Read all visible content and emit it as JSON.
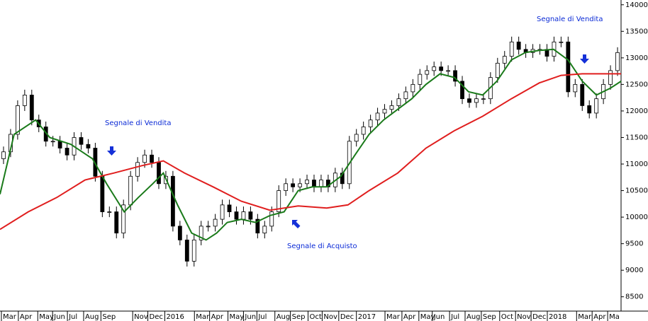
{
  "chart_data": {
    "type": "candlestick",
    "xlim": [
      0,
      176
    ],
    "ylim": [
      8230,
      14090
    ],
    "yticks": [
      8500,
      9000,
      9500,
      10000,
      10500,
      11000,
      11500,
      12000,
      12500,
      13000,
      13500,
      14000
    ],
    "xticks": [
      {
        "value": 0.4,
        "label": "Mar"
      },
      {
        "value": 5.2,
        "label": "Apr"
      },
      {
        "value": 10.7,
        "label": "May"
      },
      {
        "value": 14.9,
        "label": "Jun"
      },
      {
        "value": 19.1,
        "label": "Jul"
      },
      {
        "value": 23.7,
        "label": "Aug"
      },
      {
        "value": 28.6,
        "label": "Sep"
      },
      {
        "value": 37.6,
        "label": "Nov"
      },
      {
        "value": 41.9,
        "label": "Dec"
      },
      {
        "value": 46.7,
        "label": "2016"
      },
      {
        "value": 55.1,
        "label": "Mar"
      },
      {
        "value": 59.4,
        "label": "Apr"
      },
      {
        "value": 64.6,
        "label": "May"
      },
      {
        "value": 69,
        "label": "Jun"
      },
      {
        "value": 72.8,
        "label": "Jul"
      },
      {
        "value": 77.9,
        "label": "Aug"
      },
      {
        "value": 82.3,
        "label": "Sep"
      },
      {
        "value": 87.3,
        "label": "Oct"
      },
      {
        "value": 91.3,
        "label": "Nov"
      },
      {
        "value": 96,
        "label": "Dec"
      },
      {
        "value": 101,
        "label": "2017"
      },
      {
        "value": 109.1,
        "label": "Mar"
      },
      {
        "value": 113.9,
        "label": "Apr"
      },
      {
        "value": 118.7,
        "label": "May"
      },
      {
        "value": 122.5,
        "label": "Jun"
      },
      {
        "value": 127.4,
        "label": "Jul"
      },
      {
        "value": 131.8,
        "label": "Aug"
      },
      {
        "value": 136.4,
        "label": "Sep"
      },
      {
        "value": 141.6,
        "label": "Oct"
      },
      {
        "value": 146.1,
        "label": "Nov"
      },
      {
        "value": 150.5,
        "label": "Dec"
      },
      {
        "value": 155.1,
        "label": "2018"
      },
      {
        "value": 163.4,
        "label": "Mar"
      },
      {
        "value": 167.8,
        "label": "Apr"
      },
      {
        "value": 172.2,
        "label": "Ma"
      }
    ],
    "candles": {
      "x": [
        1,
        3,
        5,
        7,
        9,
        11,
        13,
        15,
        17,
        19,
        21,
        23,
        25,
        27,
        29,
        31,
        33,
        35,
        37,
        39,
        41,
        43,
        45,
        47,
        49,
        51,
        53,
        55,
        57,
        59,
        61,
        63,
        65,
        67,
        69,
        71,
        73,
        75,
        77,
        79,
        81,
        83,
        85,
        87,
        89,
        91,
        93,
        95,
        97,
        99,
        101,
        103,
        105,
        107,
        109,
        111,
        113,
        115,
        117,
        119,
        121,
        123,
        125,
        127,
        129,
        131,
        133,
        135,
        137,
        139,
        141,
        143,
        145,
        147,
        149,
        151,
        153,
        155,
        157,
        159,
        161,
        163,
        165,
        167,
        169,
        171,
        173,
        175
      ],
      "open": [
        11100,
        11230,
        11560,
        12100,
        12300,
        11830,
        11700,
        11430,
        11430,
        11300,
        11170,
        11500,
        11370,
        11300,
        10770,
        10100,
        10100,
        9700,
        10230,
        10770,
        11030,
        11170,
        11030,
        10630,
        10770,
        9830,
        9570,
        9170,
        9570,
        9830,
        9830,
        9960,
        10230,
        10100,
        9960,
        10100,
        9960,
        9700,
        9830,
        10100,
        10500,
        10630,
        10570,
        10630,
        10700,
        10570,
        10700,
        10570,
        10830,
        10630,
        11430,
        11560,
        11700,
        11830,
        11960,
        12030,
        12100,
        12230,
        12360,
        12500,
        12690,
        12760,
        12830,
        12760,
        12760,
        12560,
        12230,
        12160,
        12230,
        12230,
        12630,
        12900,
        13030,
        13300,
        13160,
        13100,
        13160,
        13160,
        13030,
        13300,
        13300,
        12360,
        12500,
        12100,
        11960,
        12230,
        12500,
        12760
      ],
      "high": [
        11330,
        11660,
        12200,
        12400,
        12400,
        11930,
        11800,
        11530,
        11530,
        11400,
        11600,
        11600,
        11470,
        11400,
        10870,
        10200,
        10200,
        10330,
        10870,
        11130,
        11270,
        11270,
        11130,
        10870,
        10870,
        9930,
        9670,
        9670,
        9930,
        9930,
        10060,
        10330,
        10330,
        10200,
        10200,
        10200,
        10060,
        9930,
        10200,
        10600,
        10730,
        10730,
        10730,
        10800,
        10800,
        10800,
        10800,
        10930,
        10930,
        11530,
        11660,
        11800,
        11930,
        12060,
        12130,
        12200,
        12330,
        12460,
        12600,
        12790,
        12860,
        12930,
        12930,
        12860,
        12860,
        12660,
        12330,
        12330,
        12330,
        12730,
        13000,
        13130,
        13400,
        13400,
        13260,
        13260,
        13260,
        13260,
        13400,
        13400,
        13400,
        12600,
        12600,
        12200,
        12330,
        12600,
        12860,
        13200
      ],
      "low": [
        11000,
        11130,
        11460,
        12000,
        11730,
        11600,
        11330,
        11330,
        11200,
        11070,
        11070,
        11270,
        11200,
        10670,
        10000,
        10000,
        9600,
        9600,
        10130,
        10670,
        10930,
        10930,
        10530,
        10530,
        9730,
        9470,
        9070,
        9070,
        9470,
        9730,
        9730,
        9860,
        10000,
        9860,
        9860,
        9860,
        9600,
        9600,
        9730,
        10000,
        10400,
        10470,
        10470,
        10530,
        10470,
        10470,
        10470,
        10470,
        10530,
        10530,
        11330,
        11460,
        11600,
        11730,
        11860,
        11930,
        12000,
        12130,
        12260,
        12400,
        12590,
        12660,
        12660,
        12660,
        12460,
        12130,
        12060,
        12060,
        12130,
        12130,
        12530,
        12800,
        12930,
        13060,
        13000,
        13000,
        13060,
        12930,
        12930,
        13200,
        12260,
        12260,
        12000,
        11860,
        11860,
        12130,
        12400,
        12660
      ],
      "close": [
        11230,
        11560,
        12100,
        12300,
        11830,
        11700,
        11430,
        11430,
        11300,
        11170,
        11500,
        11370,
        11300,
        10770,
        10100,
        10100,
        9700,
        10230,
        10770,
        11030,
        11170,
        11030,
        10630,
        10770,
        9830,
        9570,
        9170,
        9570,
        9830,
        9830,
        9960,
        10230,
        10100,
        9960,
        10100,
        9960,
        9700,
        9830,
        10100,
        10500,
        10630,
        10570,
        10630,
        10700,
        10570,
        10700,
        10570,
        10830,
        10630,
        11430,
        11560,
        11700,
        11830,
        11960,
        12030,
        12100,
        12230,
        12360,
        12500,
        12690,
        12760,
        12830,
        12760,
        12760,
        12560,
        12230,
        12160,
        12230,
        12230,
        12630,
        12900,
        13030,
        13300,
        13160,
        13100,
        13160,
        13160,
        13030,
        13300,
        13300,
        12360,
        12500,
        12100,
        11960,
        12230,
        12500,
        12760,
        13100
      ],
      "up_color": "#ffffff",
      "down_color": "#000000"
    },
    "lines": [
      {
        "color": "#1a7a1a",
        "x": [
          0,
          4,
          10.1,
          14.1,
          20.1,
          26.2,
          30.2,
          35.2,
          39.2,
          43.3,
          46.3,
          50.3,
          54.3,
          58.4,
          61.4,
          64.4,
          68.4,
          72.4,
          76.5,
          80.5,
          84.5,
          88.5,
          92.6,
          96.6,
          100.6,
          104.6,
          108.7,
          112.7,
          116.7,
          120.7,
          124.7,
          128.8,
          132.8,
          136.8,
          140.8,
          144.9,
          148.9,
          152.9,
          156.9,
          161,
          165,
          169,
          173,
          176
        ],
        "values": [
          10430,
          11560,
          11830,
          11500,
          11370,
          11100,
          10630,
          10100,
          10370,
          10630,
          10830,
          10230,
          9700,
          9570,
          9700,
          9900,
          9960,
          9900,
          10030,
          10100,
          10500,
          10570,
          10570,
          10770,
          11170,
          11560,
          11830,
          12030,
          12230,
          12500,
          12700,
          12630,
          12360,
          12300,
          12560,
          12960,
          13100,
          13140,
          13160,
          12960,
          12560,
          12300,
          12430,
          12560
        ]
      },
      {
        "color": "#e01e1e",
        "x": [
          0,
          8,
          16.1,
          24.1,
          32.2,
          40.2,
          46.3,
          52.3,
          60.4,
          68.4,
          76.5,
          84.5,
          92.6,
          98.6,
          104.6,
          112.7,
          120.7,
          128.8,
          136.8,
          144.9,
          152.9,
          159,
          165,
          176
        ],
        "values": [
          9770,
          10100,
          10370,
          10700,
          10830,
          10970,
          11060,
          10830,
          10570,
          10300,
          10130,
          10210,
          10170,
          10230,
          10500,
          10830,
          11300,
          11630,
          11900,
          12230,
          12530,
          12670,
          12700,
          12700
        ]
      }
    ],
    "annotations": [
      {
        "text": "Segnale di Vendita"
      },
      {
        "text": "Segnale di Acquisto"
      },
      {
        "text": "Segnale di Vendita"
      }
    ]
  }
}
